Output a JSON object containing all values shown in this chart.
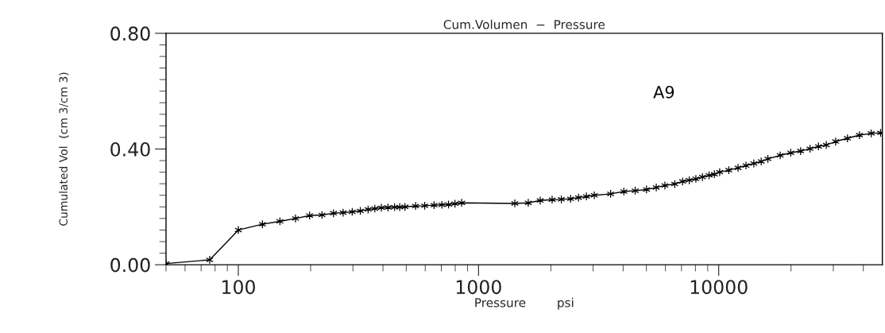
{
  "chart_data": {
    "type": "line",
    "title": "Cum.Volumen  −  Pressure",
    "xlabel": "Pressure        psi",
    "ylabel": "Cumulated Vol  (cm 3/cm 3)",
    "log": "x",
    "xlim": [
      50,
      48000
    ],
    "xticks": [
      100,
      1000,
      10000
    ],
    "ylim": [
      0,
      0.8
    ],
    "yticks": [
      {
        "value": 0,
        "label": "0.00"
      },
      {
        "value": 0.4,
        "label": "0.40"
      },
      {
        "value": 0.8,
        "label": "0.80"
      }
    ],
    "grid": false,
    "marker": "cross",
    "line_style": "solid",
    "series": [
      {
        "name": "A9",
        "color": "#000000",
        "x": [
          50,
          76,
          100,
          126,
          149,
          173,
          198,
          223,
          249,
          273,
          298,
          322,
          347,
          370,
          394,
          420,
          447,
          470,
          494,
          547,
          597,
          653,
          704,
          750,
          798,
          851,
          1416,
          1611,
          1806,
          2025,
          2212,
          2417,
          2607,
          2812,
          3034,
          3548,
          4027,
          4490,
          5005,
          5495,
          5970,
          6561,
          7076,
          7540,
          8033,
          8556,
          9120,
          9590,
          10090,
          11020,
          12040,
          12990,
          14000,
          15030,
          16020,
          18030,
          19950,
          21930,
          24000,
          26020,
          28060,
          30690,
          34360,
          38550,
          43150,
          47200
        ],
        "values": [
          0.004,
          0.017,
          0.12,
          0.14,
          0.15,
          0.16,
          0.17,
          0.172,
          0.178,
          0.18,
          0.183,
          0.186,
          0.191,
          0.194,
          0.197,
          0.198,
          0.199,
          0.199,
          0.2,
          0.203,
          0.204,
          0.206,
          0.207,
          0.208,
          0.211,
          0.214,
          0.212,
          0.214,
          0.222,
          0.225,
          0.226,
          0.228,
          0.232,
          0.236,
          0.24,
          0.245,
          0.253,
          0.256,
          0.26,
          0.267,
          0.274,
          0.279,
          0.288,
          0.292,
          0.297,
          0.303,
          0.309,
          0.313,
          0.32,
          0.327,
          0.335,
          0.343,
          0.35,
          0.357,
          0.366,
          0.378,
          0.387,
          0.393,
          0.401,
          0.409,
          0.414,
          0.426,
          0.437,
          0.448,
          0.454,
          0.456
        ]
      }
    ]
  }
}
